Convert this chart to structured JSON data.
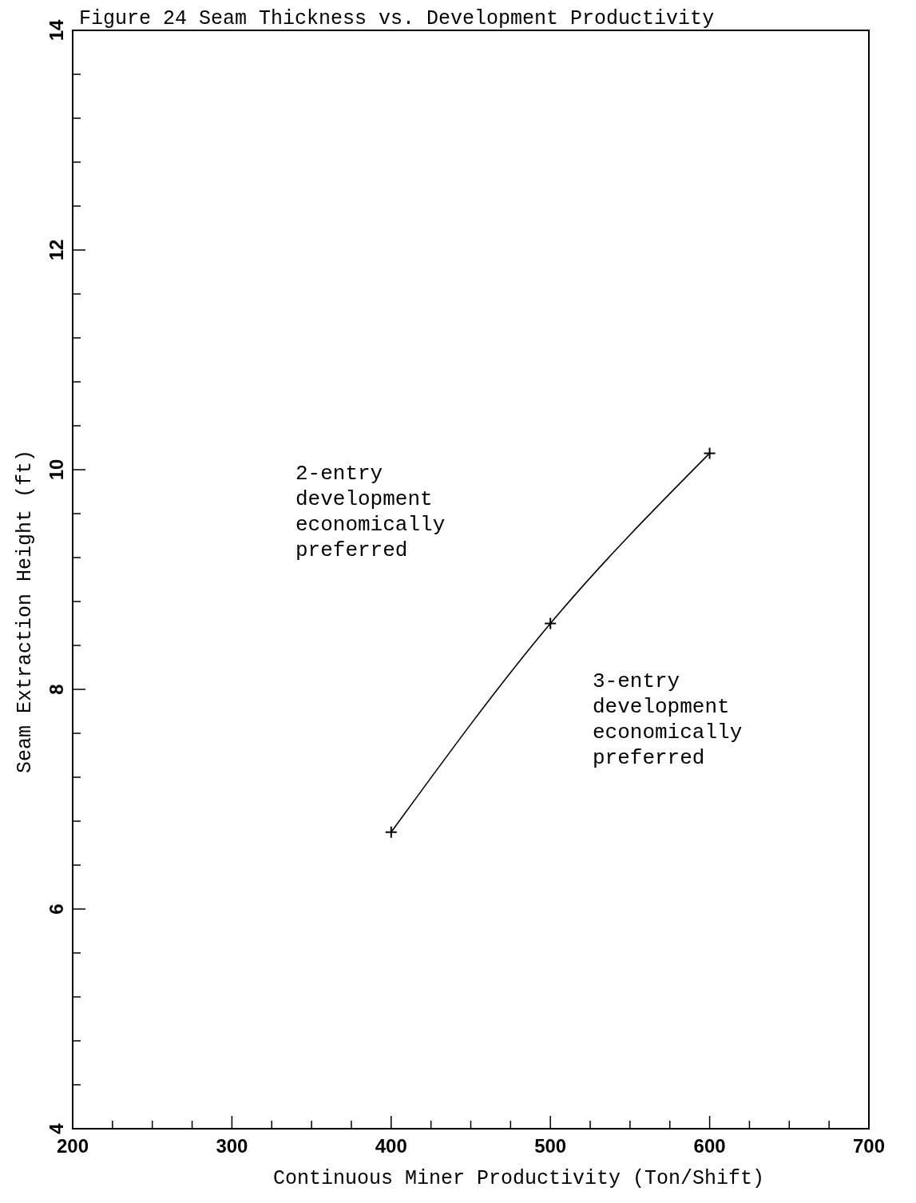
{
  "chart_data": {
    "type": "line",
    "title": "Figure 24 Seam Thickness vs. Development Productivity",
    "xlabel": "Continuous Miner Productivity (Ton/Shift)",
    "ylabel": "Seam Extraction Height (ft)",
    "x": [
      400,
      500,
      600
    ],
    "series": [
      {
        "color": "#000000",
        "values": [
          6.7,
          8.6,
          10.15
        ]
      }
    ],
    "xlim": [
      200,
      700
    ],
    "xticks": [
      200,
      {
        "value": 225,
        "label": null
      },
      {
        "value": 250,
        "label": null
      },
      {
        "value": 275,
        "label": null
      },
      300,
      {
        "value": 325,
        "label": null
      },
      {
        "value": 350,
        "label": null
      },
      {
        "value": 375,
        "label": null
      },
      400,
      {
        "value": 425,
        "label": null
      },
      {
        "value": 450,
        "label": null
      },
      {
        "value": 475,
        "label": null
      },
      500,
      {
        "value": 525,
        "label": null
      },
      {
        "value": 550,
        "label": null
      },
      {
        "value": 575,
        "label": null
      },
      600,
      {
        "value": 625,
        "label": null
      },
      {
        "value": 650,
        "label": null
      },
      {
        "value": 675,
        "label": null
      },
      700
    ],
    "ylim": [
      4,
      14
    ],
    "yticks": [
      4,
      {
        "value": 4.4,
        "label": null
      },
      {
        "value": 4.8,
        "label": null
      },
      {
        "value": 5.2,
        "label": null
      },
      {
        "value": 5.6,
        "label": null
      },
      6,
      {
        "value": 6.4,
        "label": null
      },
      {
        "value": 6.8,
        "label": null
      },
      {
        "value": 7.2,
        "label": null
      },
      {
        "value": 7.6,
        "label": null
      },
      8,
      {
        "value": 8.4,
        "label": null
      },
      {
        "value": 8.8,
        "label": null
      },
      {
        "value": 9.2,
        "label": null
      },
      {
        "value": 9.6,
        "label": null
      },
      10,
      {
        "value": 10.4,
        "label": null
      },
      {
        "value": 10.8,
        "label": null
      },
      {
        "value": 11.2,
        "label": null
      },
      {
        "value": 11.6,
        "label": null
      },
      12,
      {
        "value": 12.4,
        "label": null
      },
      {
        "value": 12.8,
        "label": null
      },
      {
        "value": 13.2,
        "label": null
      },
      {
        "value": 13.6,
        "label": null
      },
      14
    ],
    "annotations": [
      "2-entry development economically preferred",
      "3-entry development economically preferred"
    ],
    "marker": "cross",
    "line_style": "solid"
  }
}
